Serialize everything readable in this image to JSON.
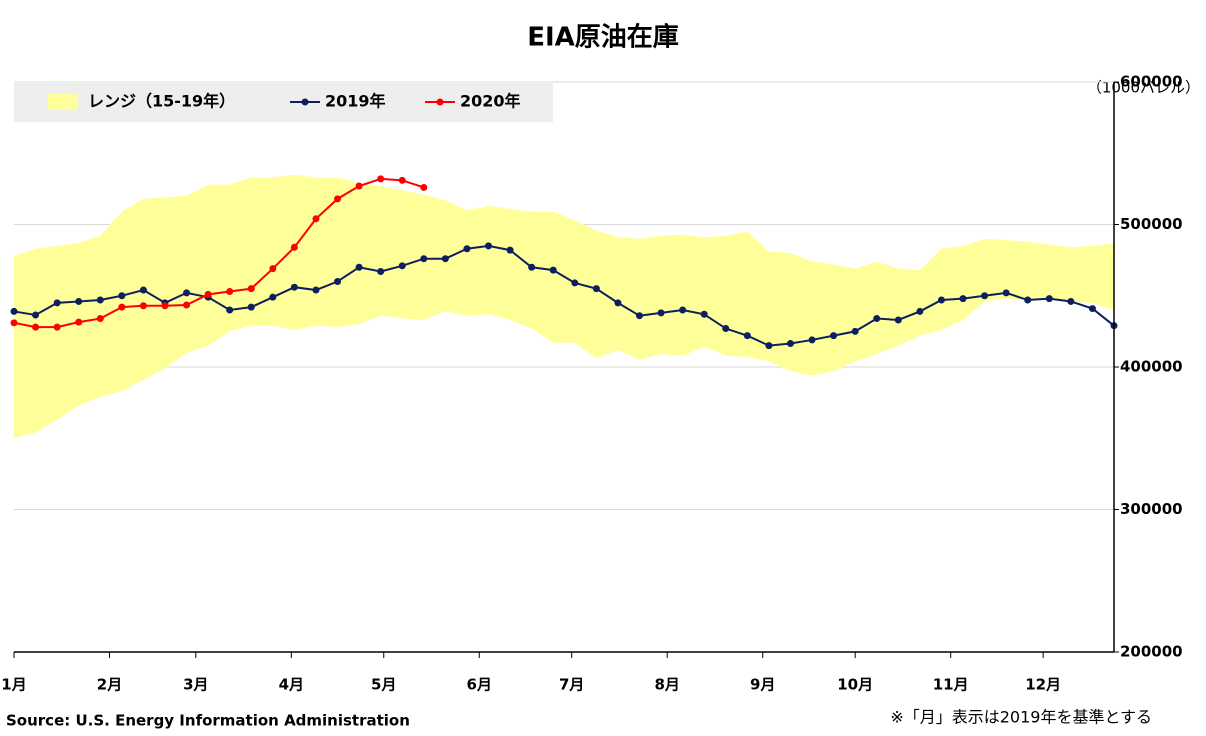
{
  "chart_data": {
    "type": "line",
    "title": "EIA原油在庫",
    "unit_label": "（1000バレル）",
    "source": "Source: U.S. Energy Information Administration",
    "note": "※「月」表示は2019年を基準とする",
    "x": [
      0,
      7,
      14,
      21,
      28,
      35,
      42,
      49,
      56,
      63,
      70,
      77,
      84,
      91,
      98,
      105,
      112,
      119,
      126,
      133,
      140,
      147,
      154,
      161,
      168,
      175,
      182,
      189,
      196,
      203,
      210,
      217,
      224,
      231,
      238,
      245,
      252,
      259,
      266,
      273,
      280,
      287,
      294,
      301,
      308,
      315,
      322,
      329,
      336,
      343,
      350,
      357
    ],
    "xlim": [
      0,
      357
    ],
    "xticks": [
      {
        "value": 0,
        "label": "1月"
      },
      {
        "value": 31,
        "label": "2月"
      },
      {
        "value": 59,
        "label": "3月"
      },
      {
        "value": 90,
        "label": "4月"
      },
      {
        "value": 120,
        "label": "5月"
      },
      {
        "value": 151,
        "label": "6月"
      },
      {
        "value": 181,
        "label": "7月"
      },
      {
        "value": 212,
        "label": "8月"
      },
      {
        "value": 243,
        "label": "9月"
      },
      {
        "value": 273,
        "label": "10月"
      },
      {
        "value": 304,
        "label": "11月"
      },
      {
        "value": 334,
        "label": "12月"
      }
    ],
    "ylim": [
      200000,
      600000
    ],
    "yticks": [
      200000,
      300000,
      400000,
      500000,
      600000
    ],
    "grid": true,
    "legend": "top-left",
    "series": [
      {
        "name": "レンジ（15-19年）",
        "color": "#ffff99",
        "high": [
          478000,
          483000,
          485000,
          487000,
          492000,
          509000,
          518000,
          519000,
          520000,
          528000,
          528000,
          533000,
          533000,
          535000,
          533000,
          533000,
          529000,
          527000,
          524000,
          521000,
          517000,
          510000,
          513000,
          511000,
          509000,
          509000,
          503000,
          496000,
          491000,
          490000,
          492000,
          493000,
          491000,
          492000,
          495000,
          481000,
          480000,
          474000,
          472000,
          469000,
          474000,
          469000,
          468000,
          483000,
          485000,
          490000,
          489000,
          488000,
          486000,
          484000,
          485000,
          487000
        ],
        "low": [
          350000,
          354000,
          363000,
          373000,
          379000,
          383000,
          391000,
          399000,
          410000,
          415000,
          425000,
          429000,
          429000,
          426000,
          429000,
          428000,
          430000,
          436000,
          434000,
          433000,
          439000,
          436000,
          437000,
          433000,
          427000,
          417000,
          417000,
          406000,
          412000,
          405000,
          409000,
          408000,
          414000,
          408000,
          407000,
          404000,
          397000,
          394000,
          397000,
          404000,
          409000,
          415000,
          422000,
          426000,
          433000,
          446000,
          448000,
          447000,
          448000,
          446000,
          445000,
          440000
        ]
      },
      {
        "name": "2019年",
        "color": "#0d1f5c",
        "values": [
          439000,
          436500,
          445000,
          446000,
          447000,
          450000,
          454000,
          445000,
          452000,
          449000,
          440000,
          442000,
          449000,
          456000,
          454000,
          460000,
          470000,
          467000,
          471000,
          476000,
          476000,
          483000,
          485000,
          482000,
          470000,
          468000,
          459000,
          455000,
          445000,
          436000,
          438000,
          440000,
          437000,
          427000,
          422000,
          415000,
          416500,
          419000,
          422000,
          425000,
          434000,
          433000,
          439000,
          447000,
          448000,
          450000,
          452000,
          447000,
          448000,
          446000,
          441000,
          429000
        ]
      },
      {
        "name": "2020年",
        "color": "#ff0000",
        "values": [
          431000,
          428000,
          428000,
          431500,
          434000,
          442000,
          443000,
          443000,
          443500,
          451000,
          453000,
          455000,
          469000,
          484000,
          504000,
          518000,
          527000,
          532000,
          531000,
          526000,
          null,
          null,
          null,
          null,
          null,
          null,
          null,
          null,
          null,
          null,
          null,
          null,
          null,
          null,
          null,
          null,
          null,
          null,
          null,
          null,
          null,
          null,
          null,
          null,
          null,
          null,
          null,
          null,
          null,
          null,
          null,
          null
        ]
      }
    ]
  }
}
